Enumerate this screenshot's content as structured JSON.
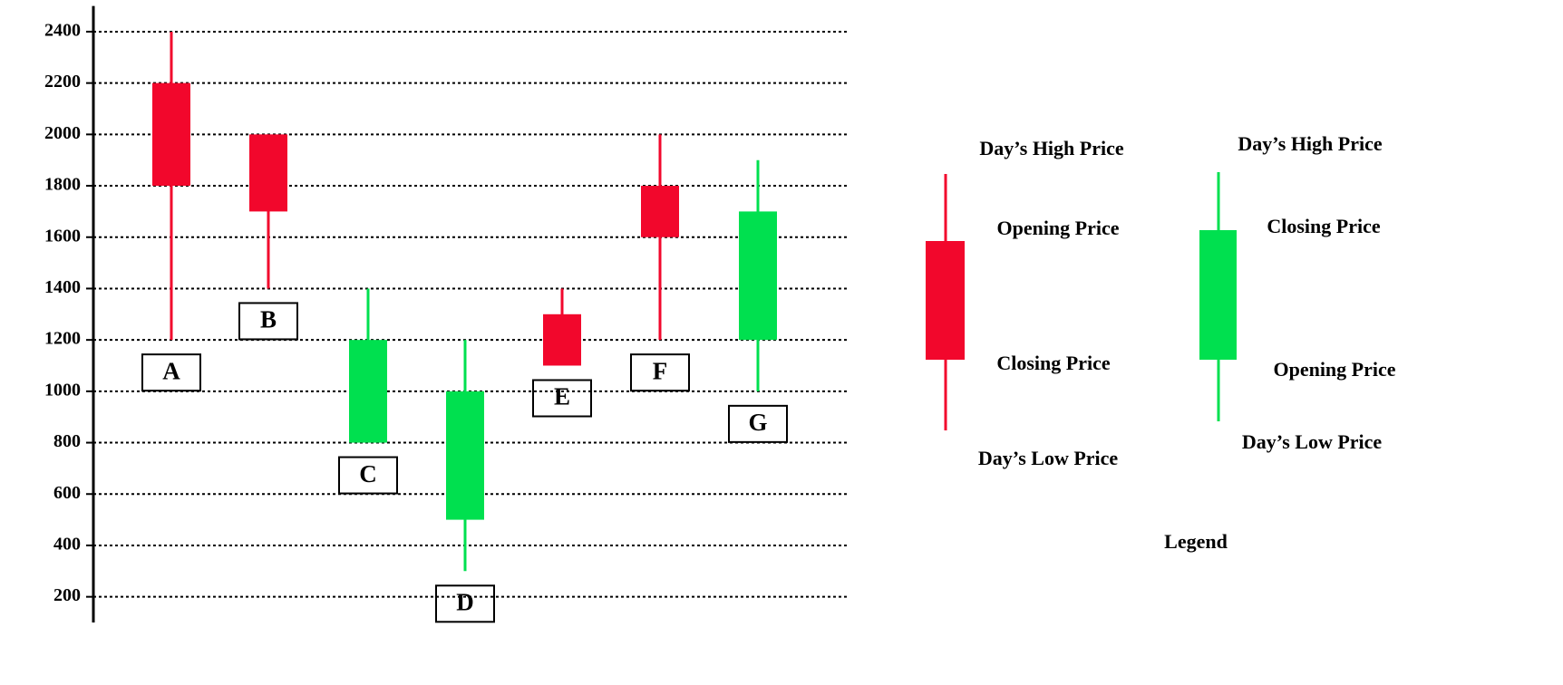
{
  "chart_data": {
    "type": "candlestick",
    "categories": [
      "A",
      "B",
      "C",
      "D",
      "E",
      "F",
      "G"
    ],
    "open": [
      2200,
      2000,
      800,
      500,
      1300,
      1800,
      1200
    ],
    "high": [
      2400,
      2000,
      1400,
      1200,
      1400,
      2000,
      1900
    ],
    "low": [
      1200,
      1400,
      800,
      300,
      1100,
      1200,
      1000
    ],
    "close": [
      1800,
      1700,
      1200,
      1000,
      1100,
      1600,
      1700
    ],
    "up_color": "#00e04f",
    "down_color": "#f2072c",
    "ylim": [
      100,
      2500
    ],
    "yticks": [
      200,
      400,
      600,
      800,
      1000,
      1200,
      1400,
      1600,
      1800,
      2000,
      2200,
      2400
    ],
    "grid": true,
    "legend": {
      "title": "Legend",
      "bearish": {
        "high": "Day’s High Price",
        "open": "Opening Price",
        "close": "Closing Price",
        "low": "Day’s Low Price"
      },
      "bullish": {
        "high": "Day’s High Price",
        "close": "Closing Price",
        "open": "Opening Price",
        "low": "Day’s Low Price"
      }
    }
  }
}
